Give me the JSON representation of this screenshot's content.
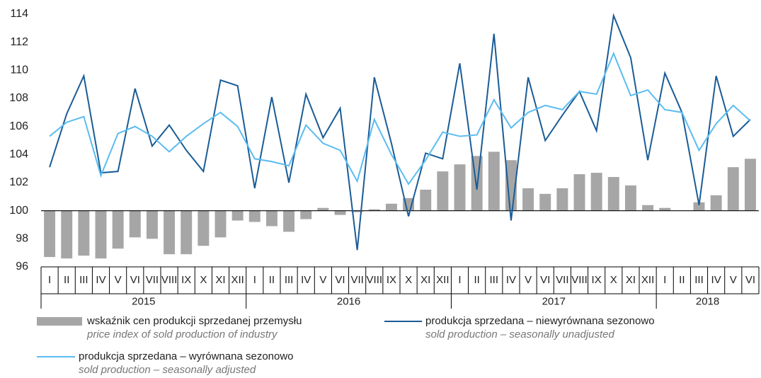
{
  "chart_data": {
    "type": "bar",
    "categories": [
      "I",
      "II",
      "III",
      "IV",
      "V",
      "VI",
      "VII",
      "VIII",
      "IX",
      "X",
      "XI",
      "XII",
      "I",
      "II",
      "III",
      "IV",
      "V",
      "VI",
      "VII",
      "VIII",
      "IX",
      "X",
      "XI",
      "XII",
      "I",
      "II",
      "III",
      "IV",
      "V",
      "VI",
      "VII",
      "VIII",
      "IX",
      "X",
      "XI",
      "XII",
      "I",
      "II",
      "III",
      "IV",
      "V",
      "VI"
    ],
    "years": [
      "2015",
      "2016",
      "2017",
      "2018"
    ],
    "series": [
      {
        "name": "wskaźnik cen produkcji sprzedanej przemysłu",
        "name_en": "price index of sold production of industry",
        "type": "bar",
        "color": "#a6a6a6",
        "values": [
          96.7,
          96.6,
          96.8,
          96.6,
          97.3,
          98.1,
          98.0,
          96.9,
          96.9,
          97.5,
          98.1,
          99.3,
          99.2,
          98.9,
          98.5,
          99.4,
          100.2,
          99.7,
          99.9,
          100.1,
          100.5,
          100.9,
          101.5,
          102.8,
          103.3,
          103.9,
          104.2,
          103.6,
          101.6,
          101.2,
          101.6,
          102.6,
          102.7,
          102.4,
          101.8,
          100.4,
          100.2,
          100.0,
          100.6,
          101.1,
          103.1,
          103.7
        ]
      },
      {
        "name": "produkcja sprzedana – niewyrównana sezonowo",
        "name_en": "sold production – seasonally unadjusted",
        "type": "line",
        "color": "#1a5c96",
        "values": [
          103.1,
          106.9,
          109.6,
          102.7,
          102.8,
          108.7,
          104.6,
          106.1,
          104.3,
          102.8,
          109.3,
          108.9,
          101.6,
          108.1,
          102.0,
          108.3,
          105.2,
          107.3,
          97.2,
          109.5,
          104.8,
          99.6,
          104.1,
          103.7,
          110.5,
          101.5,
          112.6,
          99.3,
          109.5,
          105.0,
          106.8,
          108.5,
          105.7,
          113.9,
          110.9,
          103.6,
          109.8,
          107.0,
          100.4,
          109.6,
          105.3,
          106.5
        ]
      },
      {
        "name": "produkcja sprzedana – wyrównana sezonowo",
        "name_en": "sold production – seasonally adjusted",
        "type": "line",
        "color": "#5bbcf0",
        "values": [
          105.3,
          106.3,
          106.7,
          102.5,
          105.5,
          106.0,
          105.3,
          104.2,
          105.3,
          106.2,
          107.0,
          106.0,
          103.7,
          103.5,
          103.2,
          106.1,
          104.8,
          104.3,
          102.1,
          106.5,
          104.0,
          101.9,
          103.6,
          105.6,
          105.3,
          105.4,
          107.9,
          105.9,
          107.0,
          107.5,
          107.2,
          108.5,
          108.3,
          111.2,
          108.2,
          108.6,
          107.2,
          107.0,
          104.3,
          106.2,
          107.5,
          106.4
        ]
      }
    ],
    "ylim": [
      96,
      114
    ],
    "yticks": [
      96,
      98,
      100,
      102,
      104,
      106,
      108,
      110,
      112,
      114
    ],
    "baseline": 100,
    "grid": false
  }
}
